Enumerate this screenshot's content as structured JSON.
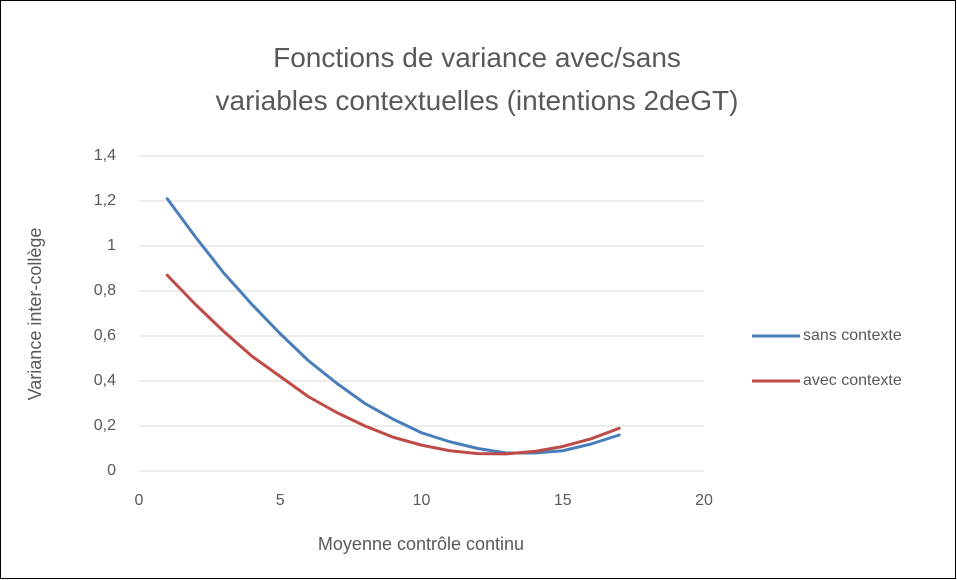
{
  "chart_data": {
    "type": "line",
    "title": "Fonctions de variance avec/sans variables contextuelles (intentions 2deGT)",
    "x_label": "Moyenne contrôle continu",
    "y_label": "Variance inter-collège",
    "x": [
      1,
      2,
      3,
      4,
      5,
      6,
      7,
      8,
      9,
      10,
      11,
      12,
      13,
      14,
      15,
      16,
      17
    ],
    "series": [
      {
        "name": "sans contexte",
        "color": "#4a7ebb",
        "values": [
          1.21,
          1.04,
          0.88,
          0.74,
          0.61,
          0.49,
          0.39,
          0.3,
          0.23,
          0.17,
          0.13,
          0.1,
          0.08,
          0.08,
          0.09,
          0.12,
          0.16
        ]
      },
      {
        "name": "avec contexte",
        "color": "#be4b48",
        "values": [
          0.87,
          0.74,
          0.62,
          0.51,
          0.42,
          0.33,
          0.26,
          0.2,
          0.15,
          0.115,
          0.09,
          0.077,
          0.076,
          0.087,
          0.109,
          0.143,
          0.19
        ]
      }
    ],
    "xlim": [
      0,
      20
    ],
    "xticks": [
      0,
      5,
      10,
      15,
      20
    ],
    "ylim": [
      0,
      1.4
    ],
    "yticks": [
      0,
      {
        "value": 0.2,
        "label": "0,2"
      },
      {
        "value": 0.4,
        "label": "0,4"
      },
      {
        "value": 0.6,
        "label": "0,6"
      },
      {
        "value": 0.8,
        "label": "0,8"
      },
      1,
      {
        "value": 1.2,
        "label": "1,2"
      },
      {
        "value": 1.4,
        "label": "1,4"
      }
    ],
    "grid": true,
    "legend": "right"
  }
}
